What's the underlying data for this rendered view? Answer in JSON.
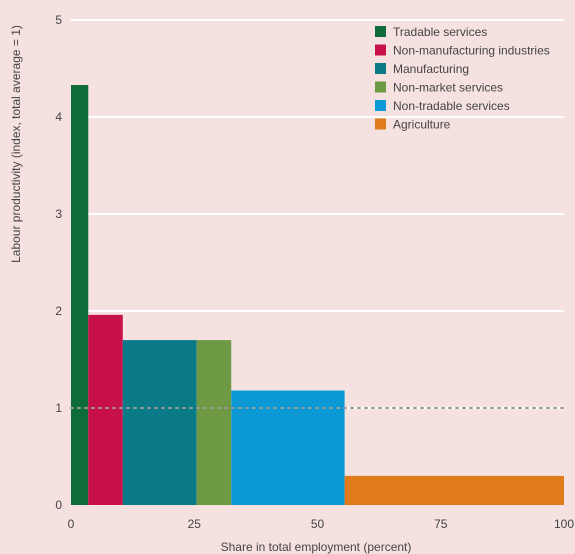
{
  "chart_data": {
    "type": "bar",
    "subtype": "variable-width bar (Marimekko)",
    "xlabel": "Share in total employment (percent)",
    "ylabel": "Labour productivity (index, total average = 1)",
    "xlim": [
      0,
      100
    ],
    "ylim": [
      0,
      5
    ],
    "x_ticks": [
      0,
      25,
      50,
      75,
      100
    ],
    "y_ticks": [
      0,
      1,
      2,
      3,
      4,
      5
    ],
    "grid": "horizontal gridlines",
    "background_color": "#f5e1df",
    "gridline_color": "#ffffff",
    "reference_line": {
      "y": 1,
      "style": "dotted",
      "color": "#9a9a9a"
    },
    "legend_position": "top-right",
    "series": [
      {
        "name": "Tradable services",
        "color": "#0e6b3a",
        "x_start": 0,
        "x_end": 3.5,
        "value": 4.33
      },
      {
        "name": "Non-manufacturing industries",
        "color": "#c8104a",
        "x_start": 3.5,
        "x_end": 10.5,
        "value": 1.96
      },
      {
        "name": "Manufacturing",
        "color": "#0b7a87",
        "x_start": 10.5,
        "x_end": 25.5,
        "value": 1.7
      },
      {
        "name": "Non-market services",
        "color": "#6e9a46",
        "x_start": 25.5,
        "x_end": 32.5,
        "value": 1.7
      },
      {
        "name": "Non-tradable services",
        "color": "#0b9ad6",
        "x_start": 32.5,
        "x_end": 55.5,
        "value": 1.18
      },
      {
        "name": "Agriculture",
        "color": "#e07b1c",
        "x_start": 55.5,
        "x_end": 100,
        "value": 0.3
      }
    ]
  }
}
